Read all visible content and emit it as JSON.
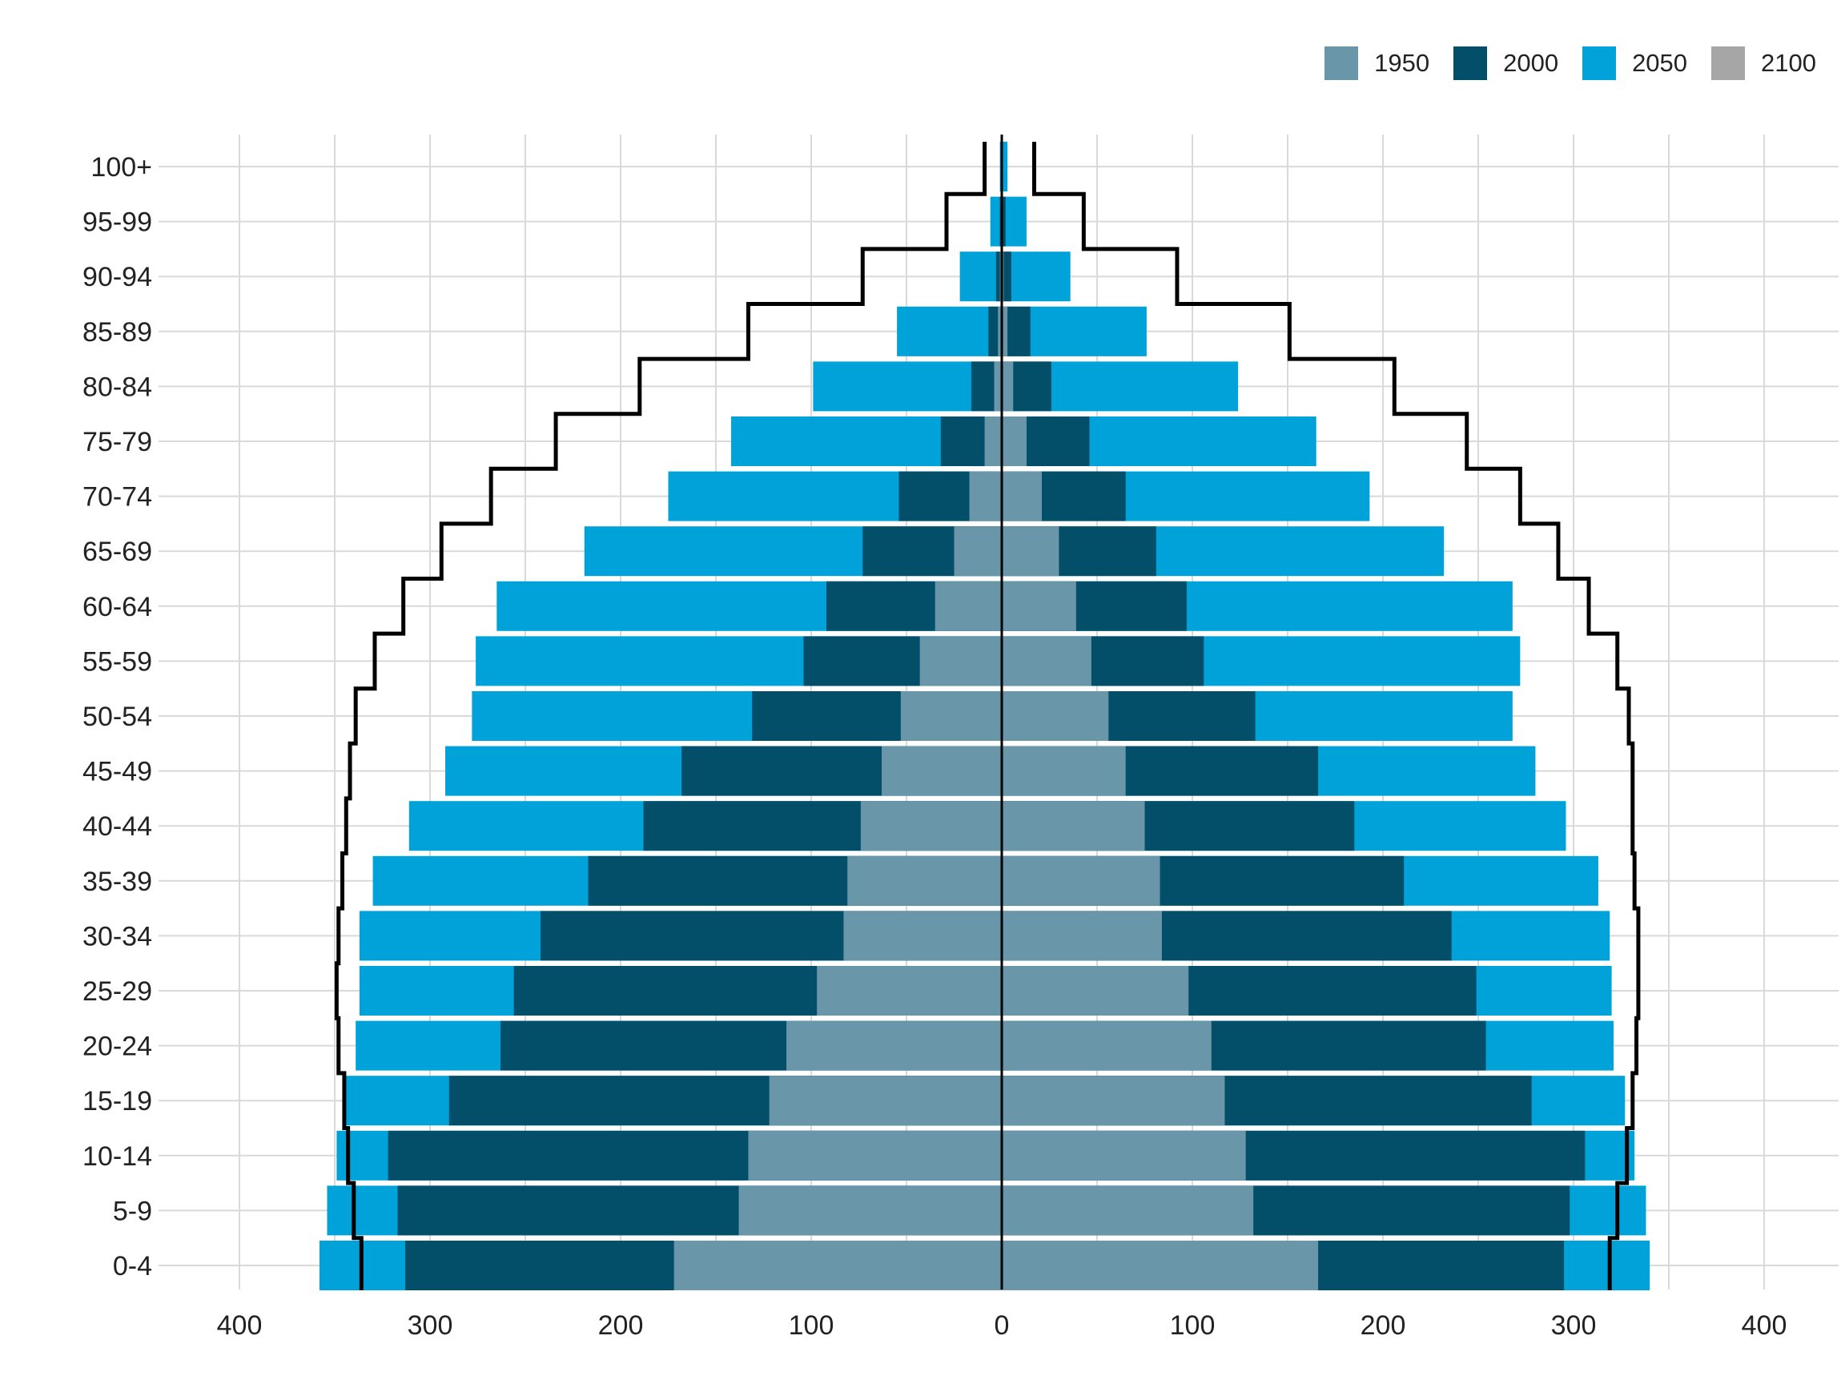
{
  "chart_data": {
    "type": "bar",
    "subtype": "population-pyramid",
    "title": "",
    "xlabel": "",
    "ylabel": "",
    "categories": [
      "0-4",
      "5-9",
      "10-14",
      "15-19",
      "20-24",
      "25-29",
      "30-34",
      "35-39",
      "40-44",
      "45-49",
      "50-54",
      "55-59",
      "60-64",
      "65-69",
      "70-74",
      "75-79",
      "80-84",
      "85-89",
      "90-94",
      "95-99",
      "100+"
    ],
    "x_ticks": [
      -400,
      -300,
      -200,
      -100,
      0,
      100,
      200,
      300,
      400
    ],
    "x_tick_labels": [
      "400",
      "300",
      "200",
      "100",
      "0",
      "100",
      "200",
      "300",
      "400"
    ],
    "xlim": [
      -400,
      400
    ],
    "grid": true,
    "legend_position": "top-right",
    "series": [
      {
        "name": "1950",
        "color": "#6a96aa",
        "left": [
          172,
          138,
          133,
          122,
          113,
          97,
          83,
          81,
          74,
          63,
          53,
          43,
          35,
          25,
          17,
          9,
          4,
          2,
          1,
          0,
          0
        ],
        "right": [
          166,
          132,
          128,
          117,
          110,
          98,
          84,
          83,
          75,
          65,
          56,
          47,
          39,
          30,
          21,
          13,
          6,
          3,
          1,
          0,
          0
        ]
      },
      {
        "name": "2000",
        "color": "#034e68",
        "left": [
          313,
          317,
          322,
          290,
          263,
          256,
          242,
          217,
          188,
          168,
          131,
          104,
          92,
          73,
          54,
          32,
          16,
          7,
          3,
          1,
          0
        ],
        "right": [
          295,
          298,
          306,
          278,
          254,
          249,
          236,
          211,
          185,
          166,
          133,
          106,
          97,
          81,
          65,
          46,
          26,
          15,
          5,
          2,
          0
        ],
        "draw": "stacked-over-1950"
      },
      {
        "name": "2050",
        "color": "#00a2da",
        "left": [
          358,
          354,
          349,
          345,
          339,
          337,
          337,
          330,
          311,
          292,
          278,
          276,
          265,
          219,
          175,
          142,
          99,
          55,
          22,
          6,
          1
        ],
        "right": [
          340,
          338,
          332,
          327,
          321,
          320,
          319,
          313,
          296,
          280,
          268,
          272,
          268,
          232,
          193,
          165,
          124,
          76,
          36,
          13,
          3
        ],
        "draw": "stacked-over-2000"
      },
      {
        "name": "2100",
        "color": "#a6a6a6",
        "left": [
          336,
          340,
          343,
          345,
          348,
          349,
          348,
          346,
          344,
          342,
          339,
          329,
          314,
          294,
          268,
          234,
          190,
          133,
          73,
          29,
          9
        ],
        "right": [
          319,
          323,
          328,
          331,
          333,
          334,
          334,
          332,
          331,
          331,
          329,
          323,
          308,
          292,
          272,
          244,
          206,
          151,
          92,
          43,
          17
        ],
        "draw": "step-outline"
      }
    ]
  }
}
